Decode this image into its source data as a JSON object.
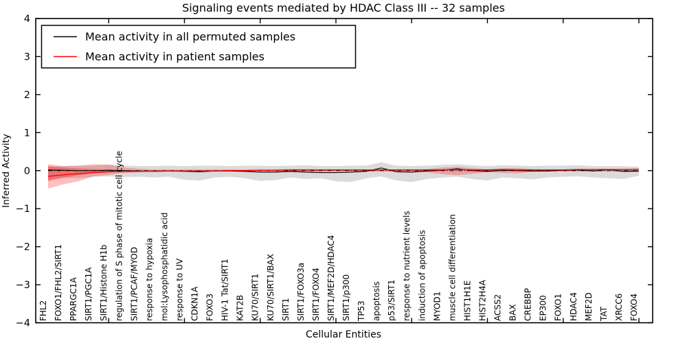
{
  "chart_data": {
    "type": "line",
    "title": "Signaling events mediated by HDAC Class III -- 32 samples",
    "xlabel": "Cellular Entities",
    "ylabel": "Inferred Activity",
    "ylim": [
      -4,
      4
    ],
    "yticks": [
      -4,
      -3,
      -2,
      -1,
      0,
      1,
      2,
      3,
      4
    ],
    "xtick_indices": [
      4,
      9,
      14,
      19,
      24,
      29,
      34,
      39
    ],
    "grid": false,
    "legend": {
      "position": "upper left",
      "entries": [
        {
          "label": "Mean activity in all permuted samples",
          "color": "#000000"
        },
        {
          "label": "Mean activity in patient samples",
          "color": "#ff0000"
        }
      ]
    },
    "categories": [
      "FHL2",
      "FOXO1/FHL2/SIRT1",
      "PPARGC1A",
      "SIRT1/PGC1A",
      "SIRT1/Histone H1b",
      "regulation of S phase of mitotic cell cycle",
      "SIRT1/PCAF/MYOD",
      "response to hypoxia",
      "mol:Lysophosphatidic acid",
      "response to UV",
      "CDKN1A",
      "FOXO3",
      "HIV-1 Tat/SIRT1",
      "KAT2B",
      "KU70/SIRT1",
      "KU70/SIRT1/BAX",
      "SIRT1",
      "SIRT1/FOXO3a",
      "SIRT1/FOXO4",
      "SIRT1/MEF2D/HDAC4",
      "SIRT1/p300",
      "TP53",
      "apoptosis",
      "p53/SIRT1",
      "response to nutrient levels",
      "induction of apoptosis",
      "MYOD1",
      "muscle cell differentiation",
      "HIST1H1E",
      "HIST2H4A",
      "ACSS2",
      "BAX",
      "CREBBP",
      "EP300",
      "FOXO1",
      "HDAC4",
      "MEF2D",
      "TAT",
      "XRCC6",
      "FOXO4"
    ],
    "series": [
      {
        "name": "Mean activity in all permuted samples",
        "color": "#000000",
        "style": "solid",
        "width": 1.1,
        "values": [
          0.02,
          0.01,
          0.0,
          0.0,
          0.01,
          0.0,
          -0.01,
          -0.02,
          -0.01,
          -0.02,
          -0.03,
          -0.01,
          -0.01,
          -0.02,
          -0.04,
          -0.04,
          -0.02,
          -0.04,
          -0.05,
          -0.05,
          -0.04,
          -0.02,
          0.07,
          -0.03,
          -0.04,
          -0.01,
          0.01,
          0.05,
          0.0,
          -0.02,
          0.01,
          0.0,
          -0.01,
          -0.01,
          0.01,
          0.02,
          -0.01,
          0.03,
          -0.02,
          -0.01
        ]
      },
      {
        "name": "Mean activity in patient samples",
        "color": "#ff0000",
        "style": "solid",
        "width": 1.4,
        "values": [
          -0.15,
          -0.11,
          -0.08,
          -0.05,
          -0.03,
          -0.02,
          -0.02,
          -0.01,
          -0.01,
          -0.01,
          -0.01,
          -0.01,
          0.0,
          0.0,
          0.01,
          0.01,
          0.02,
          0.02,
          0.02,
          0.02,
          0.02,
          0.02,
          0.02,
          0.02,
          0.02,
          0.02,
          0.02,
          0.03,
          0.02,
          0.02,
          0.03,
          0.02,
          0.02,
          0.02,
          0.02,
          0.03,
          0.03,
          0.03,
          0.03,
          0.04
        ]
      }
    ],
    "reference_line": {
      "y": 0,
      "color": "#000000",
      "style": "dashdot",
      "width": 1.1
    },
    "bands": [
      {
        "name": "permuted-activity-range",
        "color": "rgba(0,0,0,0.14)",
        "start_index": 0,
        "upper": [
          0.1,
          0.12,
          0.13,
          0.13,
          0.16,
          0.13,
          0.12,
          0.12,
          0.13,
          0.12,
          0.13,
          0.13,
          0.12,
          0.13,
          0.13,
          0.12,
          0.13,
          0.14,
          0.12,
          0.12,
          0.13,
          0.13,
          0.22,
          0.13,
          0.12,
          0.13,
          0.15,
          0.17,
          0.14,
          0.12,
          0.14,
          0.13,
          0.12,
          0.13,
          0.13,
          0.14,
          0.12,
          0.12,
          0.12,
          0.1
        ],
        "lower": [
          -0.28,
          -0.18,
          -0.2,
          -0.16,
          -0.15,
          -0.17,
          -0.16,
          -0.18,
          -0.16,
          -0.24,
          -0.26,
          -0.18,
          -0.16,
          -0.2,
          -0.27,
          -0.25,
          -0.18,
          -0.22,
          -0.2,
          -0.28,
          -0.3,
          -0.2,
          -0.15,
          -0.26,
          -0.3,
          -0.22,
          -0.18,
          -0.16,
          -0.22,
          -0.26,
          -0.18,
          -0.2,
          -0.23,
          -0.18,
          -0.16,
          -0.15,
          -0.18,
          -0.2,
          -0.22,
          -0.13
        ]
      },
      {
        "name": "patient-activity-range",
        "color": "rgba(255,0,0,0.25)",
        "start_index": 0,
        "upper": [
          0.17,
          0.12,
          0.13,
          0.17,
          0.16,
          0.08,
          0.05,
          0.03,
          0.03,
          0.03,
          0.03,
          0.03,
          0.03,
          0.03,
          0.03,
          0.03,
          0.04,
          0.04,
          0.03,
          0.03,
          0.03,
          0.03,
          0.04,
          0.03,
          0.03,
          0.04,
          0.08,
          0.1,
          0.07,
          0.04,
          0.06,
          0.07,
          0.04,
          0.03,
          0.03,
          0.04,
          0.03,
          0.03,
          0.04,
          0.04
        ],
        "lower": [
          -0.47,
          -0.36,
          -0.28,
          -0.15,
          -0.11,
          -0.06,
          -0.04,
          -0.03,
          -0.03,
          -0.03,
          -0.03,
          -0.03,
          -0.02,
          -0.02,
          -0.02,
          -0.03,
          -0.04,
          -0.04,
          -0.02,
          -0.02,
          -0.02,
          -0.02,
          -0.02,
          -0.02,
          -0.02,
          -0.04,
          -0.09,
          -0.12,
          -0.08,
          -0.04,
          -0.06,
          -0.07,
          -0.03,
          -0.02,
          -0.02,
          -0.02,
          -0.02,
          -0.02,
          -0.04,
          -0.04
        ]
      },
      {
        "name": "patient-activity-range-inner",
        "color": "rgba(255,0,0,0.30)",
        "start_index": 0,
        "upper": [
          0.12,
          0.08,
          0.06,
          0.04,
          0.03,
          0.02
        ],
        "lower": [
          -0.26,
          -0.19,
          -0.12,
          -0.07,
          -0.04,
          -0.02
        ]
      }
    ]
  }
}
